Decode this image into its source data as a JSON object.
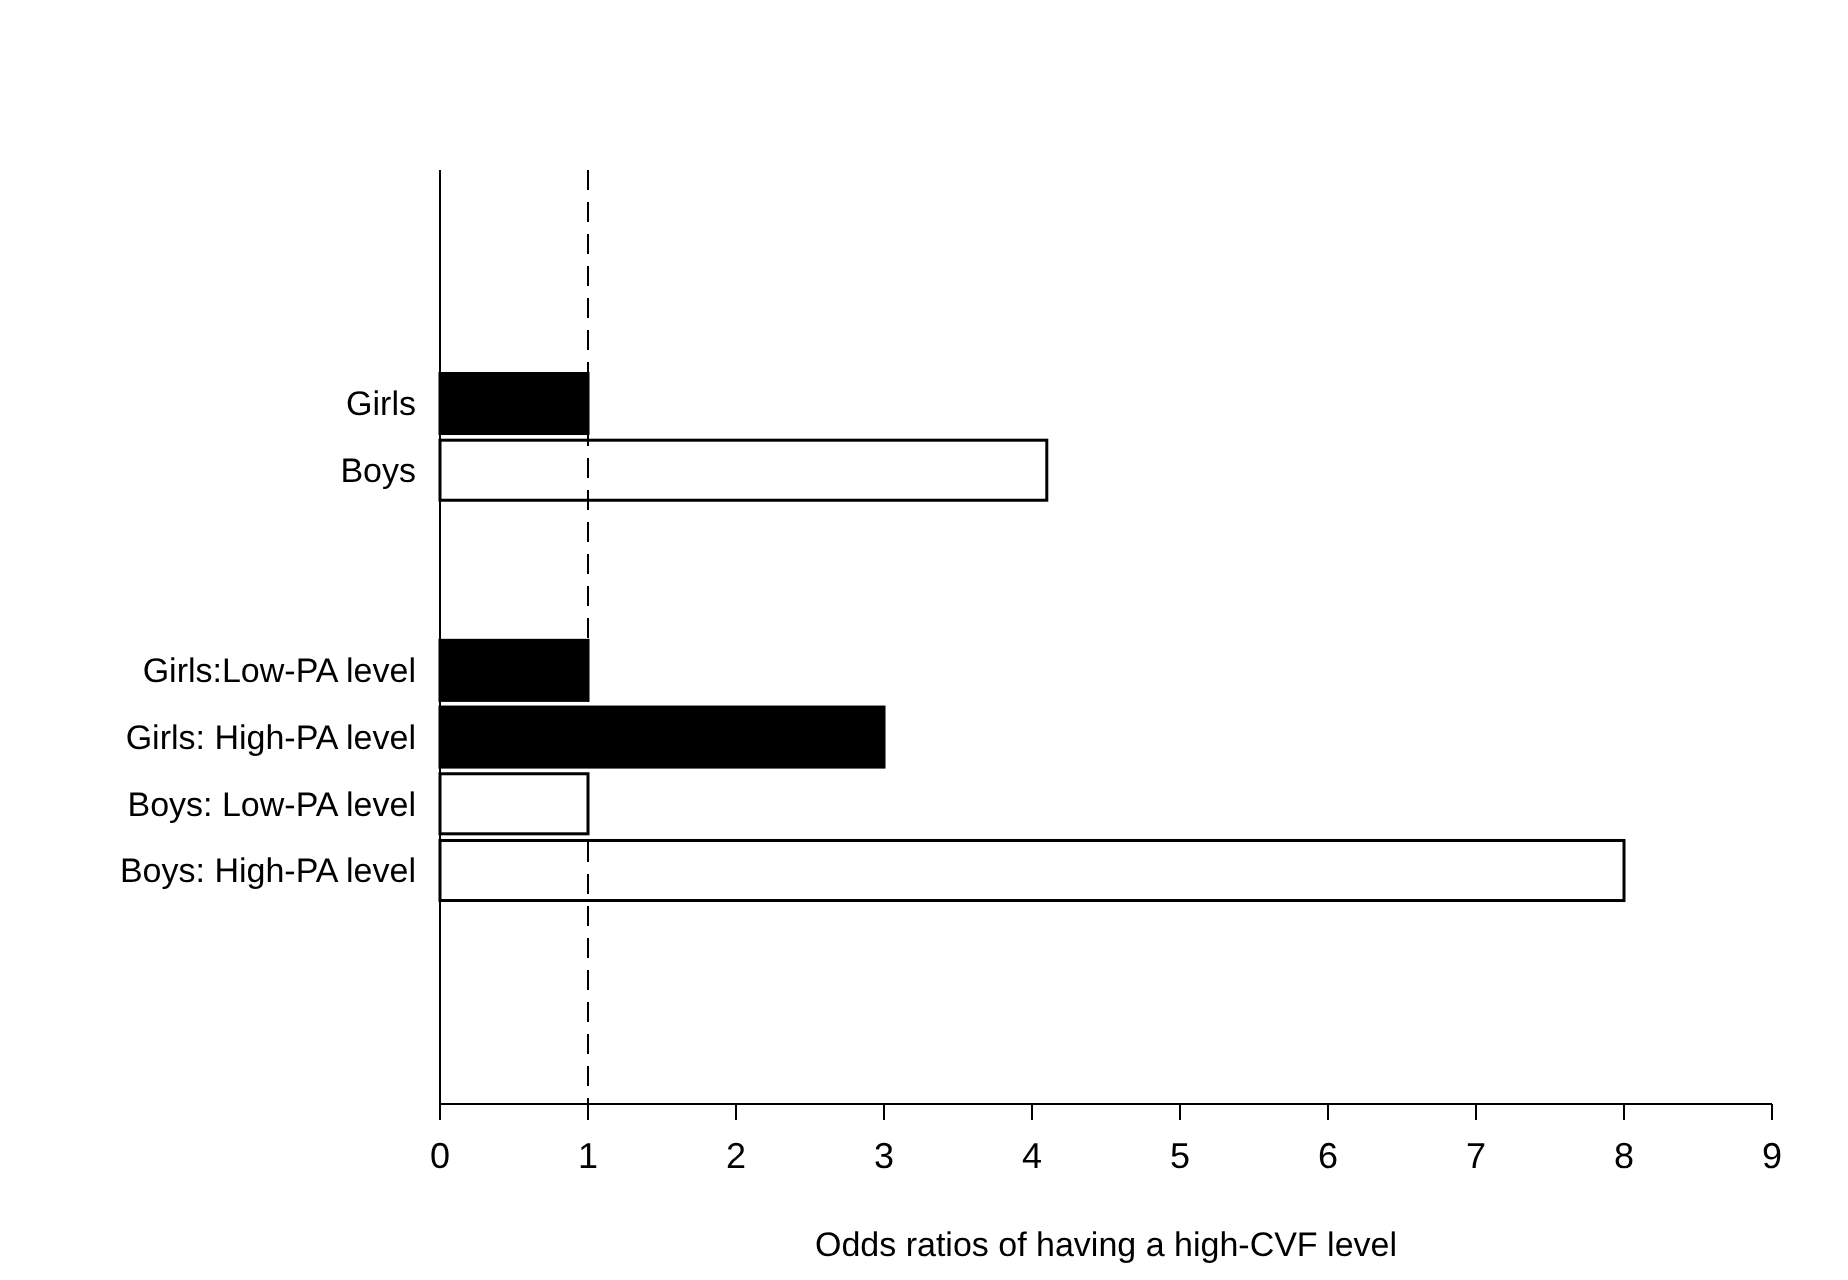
{
  "chart_data": {
    "type": "bar",
    "orientation": "horizontal",
    "xlabel": "Odds ratios of having a high-CVF level",
    "categories": [
      null,
      null,
      null,
      "Girls",
      "Boys",
      null,
      null,
      "Girls:Low-PA level",
      "Girls: High-PA level",
      "Boys: Low-PA level",
      "Boys: High-PA level",
      null,
      null,
      null
    ],
    "values": [
      null,
      null,
      null,
      1,
      4.1,
      null,
      null,
      1,
      3,
      1,
      8,
      null,
      null,
      null
    ],
    "colors": [
      null,
      null,
      null,
      "#000000",
      "#ffffff",
      null,
      null,
      "#000000",
      "#000000",
      "#ffffff",
      "#ffffff",
      null,
      null,
      null
    ],
    "xlim": [
      0,
      9
    ],
    "xticks": [
      0,
      1,
      2,
      3,
      4,
      5,
      6,
      7,
      8,
      9
    ],
    "grid": false,
    "ref_lines": [
      {
        "axis": "x",
        "value": 1,
        "line_style": "dashed",
        "color": "#000000"
      }
    ]
  }
}
